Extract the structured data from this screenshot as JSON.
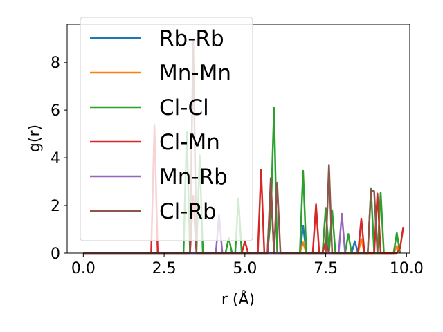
{
  "chart_data": {
    "type": "line",
    "xlabel": "r (Å)",
    "ylabel": "g(r)",
    "xlim": [
      -0.5,
      10.1
    ],
    "ylim": [
      0,
      9.6
    ],
    "xticks": [
      0.0,
      2.5,
      5.0,
      7.5,
      10.0
    ],
    "xtick_labels": [
      "0.0",
      "2.5",
      "5.0",
      "7.5",
      "10.0"
    ],
    "yticks": [
      0,
      2,
      4,
      6,
      8
    ],
    "ytick_labels": [
      "0",
      "2",
      "4",
      "6",
      "8"
    ],
    "grid": false,
    "legend_position": "upper-left",
    "series": [
      {
        "name": "Rb-Rb",
        "color": "#1f77b4",
        "x": [
          0.0,
          6.7,
          6.8,
          6.9,
          8.3,
          8.4,
          8.5,
          9.6,
          9.7,
          9.8
        ],
        "y": [
          0,
          0,
          1.15,
          0,
          0,
          0.5,
          0,
          0,
          0.3,
          0
        ]
      },
      {
        "name": "Mn-Mn",
        "color": "#ff7f0e",
        "x": [
          0.0,
          6.7,
          6.8,
          6.9,
          8.5,
          8.6,
          8.7,
          9.6,
          9.7,
          9.8
        ],
        "y": [
          0,
          0,
          0.45,
          0,
          0,
          0.6,
          0,
          0,
          0.3,
          0
        ]
      },
      {
        "name": "Cl-Cl",
        "color": "#2ca02c",
        "x": [
          0.0,
          3.1,
          3.2,
          3.3,
          3.5,
          3.6,
          3.7,
          4.4,
          4.5,
          4.6,
          4.7,
          4.8,
          4.9,
          5.7,
          5.8,
          5.9,
          6.0,
          6.7,
          6.8,
          6.9,
          7.4,
          7.5,
          7.6,
          7.7,
          7.8,
          7.9,
          8.1,
          8.2,
          8.3,
          8.8,
          8.9,
          9.0,
          9.1,
          9.2,
          9.3,
          9.6,
          9.7,
          9.8
        ],
        "y": [
          0,
          0,
          5.1,
          0,
          0,
          4.1,
          0,
          0,
          0.65,
          0,
          0,
          2.3,
          0,
          0,
          1.5,
          6.1,
          0,
          0,
          3.45,
          0,
          0,
          1.9,
          0,
          1.8,
          0,
          0,
          0,
          0.8,
          0,
          0,
          2.7,
          0,
          0,
          2.55,
          0,
          0,
          0.85,
          0
        ]
      },
      {
        "name": "Cl-Mn",
        "color": "#d62728",
        "x": [
          0.0,
          2.1,
          2.2,
          2.3,
          3.3,
          3.4,
          3.5,
          4.9,
          5.0,
          5.1,
          5.4,
          5.5,
          5.6,
          5.7,
          5.8,
          5.9,
          7.1,
          7.2,
          7.3,
          7.4,
          7.5,
          7.6,
          8.5,
          8.6,
          8.7,
          9.0,
          9.1,
          9.2,
          9.3,
          9.7,
          9.8,
          9.9
        ],
        "y": [
          0,
          0,
          5.35,
          0,
          0,
          2.4,
          0,
          0,
          0.5,
          0,
          0,
          3.5,
          0,
          0,
          2.9,
          0,
          0,
          2.05,
          0,
          0,
          0.5,
          0,
          0,
          1.45,
          0,
          0,
          2.5,
          0,
          0,
          0,
          0.2,
          1.1
        ]
      },
      {
        "name": "Mn-Rb",
        "color": "#9467bd",
        "x": [
          0.0,
          4.1,
          4.2,
          4.3,
          7.9,
          8.0,
          8.1
        ],
        "y": [
          0,
          0,
          1.6,
          0,
          0,
          1.65,
          0
        ]
      },
      {
        "name": "Cl-Rb",
        "color": "#8c564b",
        "x": [
          0.0,
          3.3,
          3.4,
          3.5,
          5.7,
          5.8,
          5.9,
          6.0,
          6.1,
          7.5,
          7.6,
          7.7,
          8.8,
          8.9,
          9.0,
          9.1,
          9.2
        ],
        "y": [
          0,
          0,
          8.9,
          0,
          0,
          3.15,
          0,
          2.95,
          0,
          0,
          3.7,
          0,
          0,
          2.65,
          2.6,
          0,
          0
        ]
      }
    ]
  }
}
